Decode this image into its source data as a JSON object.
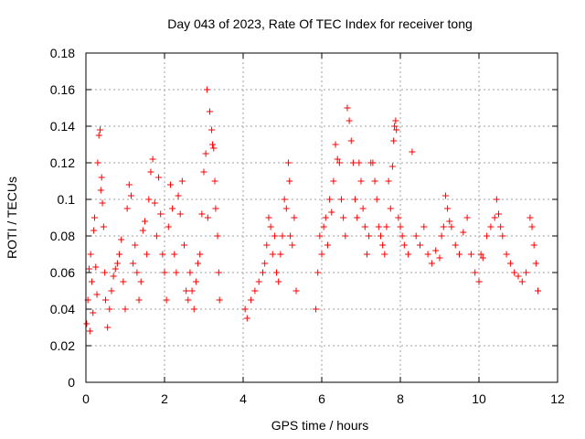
{
  "chart_data": {
    "type": "scatter",
    "title": "Day 043 of 2023, Rate Of TEC Index for receiver tong",
    "xlabel": "GPS time / hours",
    "ylabel": "ROTI / TECUs",
    "xlim": [
      0,
      12
    ],
    "ylim": [
      0,
      0.18
    ],
    "x_ticks": [
      0,
      2,
      4,
      6,
      8,
      10,
      12
    ],
    "x_tick_labels": [
      "0",
      "2",
      "4",
      "6",
      "8",
      "10",
      "12"
    ],
    "y_ticks": [
      0,
      0.02,
      0.04,
      0.06,
      0.08,
      0.1,
      0.12,
      0.14,
      0.16,
      0.18
    ],
    "y_tick_labels": [
      "0",
      "0.02",
      "0.04",
      "0.06",
      "0.08",
      "0.1",
      "0.12",
      "0.14",
      "0.16",
      "0.18"
    ],
    "grid": true,
    "marker": "+",
    "marker_color": "#ff0000",
    "series": [
      {
        "name": "ROTI",
        "points": [
          [
            0.02,
            0.032
          ],
          [
            0.05,
            0.045
          ],
          [
            0.08,
            0.062
          ],
          [
            0.1,
            0.028
          ],
          [
            0.12,
            0.07
          ],
          [
            0.15,
            0.055
          ],
          [
            0.18,
            0.038
          ],
          [
            0.2,
            0.083
          ],
          [
            0.22,
            0.09
          ],
          [
            0.25,
            0.063
          ],
          [
            0.28,
            0.048
          ],
          [
            0.3,
            0.12
          ],
          [
            0.33,
            0.135
          ],
          [
            0.36,
            0.138
          ],
          [
            0.38,
            0.105
          ],
          [
            0.4,
            0.112
          ],
          [
            0.42,
            0.098
          ],
          [
            0.45,
            0.085
          ],
          [
            0.48,
            0.06
          ],
          [
            0.5,
            0.045
          ],
          [
            0.55,
            0.03
          ],
          [
            0.6,
            0.04
          ],
          [
            0.65,
            0.05
          ],
          [
            0.7,
            0.058
          ],
          [
            0.75,
            0.062
          ],
          [
            0.8,
            0.065
          ],
          [
            0.85,
            0.07
          ],
          [
            0.9,
            0.078
          ],
          [
            0.95,
            0.055
          ],
          [
            1.0,
            0.04
          ],
          [
            1.05,
            0.095
          ],
          [
            1.1,
            0.108
          ],
          [
            1.15,
            0.102
          ],
          [
            1.2,
            0.065
          ],
          [
            1.25,
            0.075
          ],
          [
            1.3,
            0.06
          ],
          [
            1.35,
            0.045
          ],
          [
            1.4,
            0.055
          ],
          [
            1.45,
            0.083
          ],
          [
            1.5,
            0.088
          ],
          [
            1.55,
            0.07
          ],
          [
            1.6,
            0.1
          ],
          [
            1.65,
            0.115
          ],
          [
            1.7,
            0.122
          ],
          [
            1.75,
            0.098
          ],
          [
            1.8,
            0.08
          ],
          [
            1.85,
            0.112
          ],
          [
            1.9,
            0.092
          ],
          [
            1.95,
            0.07
          ],
          [
            2.0,
            0.06
          ],
          [
            2.05,
            0.045
          ],
          [
            2.1,
            0.085
          ],
          [
            2.15,
            0.108
          ],
          [
            2.2,
            0.095
          ],
          [
            2.25,
            0.07
          ],
          [
            2.3,
            0.06
          ],
          [
            2.35,
            0.102
          ],
          [
            2.4,
            0.092
          ],
          [
            2.45,
            0.11
          ],
          [
            2.5,
            0.075
          ],
          [
            2.55,
            0.05
          ],
          [
            2.6,
            0.045
          ],
          [
            2.65,
            0.06
          ],
          [
            2.7,
            0.05
          ],
          [
            2.75,
            0.04
          ],
          [
            2.8,
            0.055
          ],
          [
            2.85,
            0.065
          ],
          [
            2.9,
            0.07
          ],
          [
            2.95,
            0.092
          ],
          [
            3.0,
            0.115
          ],
          [
            3.05,
            0.125
          ],
          [
            3.08,
            0.16
          ],
          [
            3.1,
            0.09
          ],
          [
            3.15,
            0.148
          ],
          [
            3.2,
            0.138
          ],
          [
            3.22,
            0.13
          ],
          [
            3.25,
            0.128
          ],
          [
            3.28,
            0.11
          ],
          [
            3.3,
            0.095
          ],
          [
            3.35,
            0.08
          ],
          [
            3.38,
            0.06
          ],
          [
            3.4,
            0.045
          ],
          [
            4.05,
            0.04
          ],
          [
            4.1,
            0.035
          ],
          [
            4.2,
            0.045
          ],
          [
            4.3,
            0.05
          ],
          [
            4.4,
            0.055
          ],
          [
            4.5,
            0.06
          ],
          [
            4.55,
            0.065
          ],
          [
            4.6,
            0.075
          ],
          [
            4.65,
            0.09
          ],
          [
            4.7,
            0.085
          ],
          [
            4.75,
            0.07
          ],
          [
            4.8,
            0.08
          ],
          [
            4.85,
            0.06
          ],
          [
            4.9,
            0.055
          ],
          [
            4.95,
            0.07
          ],
          [
            5.0,
            0.08
          ],
          [
            5.05,
            0.1
          ],
          [
            5.1,
            0.095
          ],
          [
            5.15,
            0.12
          ],
          [
            5.18,
            0.11
          ],
          [
            5.2,
            0.08
          ],
          [
            5.25,
            0.075
          ],
          [
            5.3,
            0.09
          ],
          [
            5.35,
            0.05
          ],
          [
            5.85,
            0.04
          ],
          [
            5.9,
            0.06
          ],
          [
            5.95,
            0.08
          ],
          [
            6.0,
            0.07
          ],
          [
            6.05,
            0.085
          ],
          [
            6.1,
            0.09
          ],
          [
            6.15,
            0.075
          ],
          [
            6.2,
            0.1
          ],
          [
            6.25,
            0.093
          ],
          [
            6.3,
            0.11
          ],
          [
            6.35,
            0.13
          ],
          [
            6.4,
            0.122
          ],
          [
            6.45,
            0.12
          ],
          [
            6.5,
            0.1
          ],
          [
            6.55,
            0.09
          ],
          [
            6.6,
            0.08
          ],
          [
            6.65,
            0.15
          ],
          [
            6.7,
            0.143
          ],
          [
            6.75,
            0.132
          ],
          [
            6.8,
            0.12
          ],
          [
            6.85,
            0.1
          ],
          [
            6.9,
            0.09
          ],
          [
            6.95,
            0.12
          ],
          [
            7.0,
            0.11
          ],
          [
            7.05,
            0.095
          ],
          [
            7.1,
            0.085
          ],
          [
            7.15,
            0.07
          ],
          [
            7.2,
            0.08
          ],
          [
            7.25,
            0.12
          ],
          [
            7.3,
            0.12
          ],
          [
            7.35,
            0.11
          ],
          [
            7.4,
            0.1
          ],
          [
            7.45,
            0.085
          ],
          [
            7.5,
            0.08
          ],
          [
            7.55,
            0.075
          ],
          [
            7.6,
            0.07
          ],
          [
            7.65,
            0.085
          ],
          [
            7.7,
            0.11
          ],
          [
            7.75,
            0.095
          ],
          [
            7.8,
            0.118
          ],
          [
            7.83,
            0.132
          ],
          [
            7.85,
            0.14
          ],
          [
            7.88,
            0.143
          ],
          [
            7.9,
            0.138
          ],
          [
            7.95,
            0.09
          ],
          [
            8.0,
            0.085
          ],
          [
            8.05,
            0.08
          ],
          [
            8.1,
            0.075
          ],
          [
            8.2,
            0.07
          ],
          [
            8.3,
            0.126
          ],
          [
            8.4,
            0.08
          ],
          [
            8.5,
            0.075
          ],
          [
            8.6,
            0.085
          ],
          [
            8.7,
            0.07
          ],
          [
            8.8,
            0.065
          ],
          [
            8.9,
            0.072
          ],
          [
            9.0,
            0.068
          ],
          [
            9.05,
            0.08
          ],
          [
            9.1,
            0.085
          ],
          [
            9.15,
            0.102
          ],
          [
            9.2,
            0.095
          ],
          [
            9.25,
            0.088
          ],
          [
            9.3,
            0.085
          ],
          [
            9.4,
            0.075
          ],
          [
            9.5,
            0.07
          ],
          [
            9.6,
            0.082
          ],
          [
            9.7,
            0.09
          ],
          [
            9.8,
            0.07
          ],
          [
            9.9,
            0.06
          ],
          [
            10.0,
            0.055
          ],
          [
            10.05,
            0.07
          ],
          [
            10.1,
            0.068
          ],
          [
            10.2,
            0.08
          ],
          [
            10.3,
            0.085
          ],
          [
            10.4,
            0.09
          ],
          [
            10.45,
            0.1
          ],
          [
            10.5,
            0.092
          ],
          [
            10.55,
            0.085
          ],
          [
            10.6,
            0.08
          ],
          [
            10.7,
            0.07
          ],
          [
            10.8,
            0.065
          ],
          [
            10.9,
            0.06
          ],
          [
            11.0,
            0.058
          ],
          [
            11.1,
            0.055
          ],
          [
            11.2,
            0.06
          ],
          [
            11.3,
            0.09
          ],
          [
            11.35,
            0.085
          ],
          [
            11.4,
            0.075
          ],
          [
            11.45,
            0.065
          ],
          [
            11.5,
            0.05
          ]
        ]
      }
    ]
  }
}
